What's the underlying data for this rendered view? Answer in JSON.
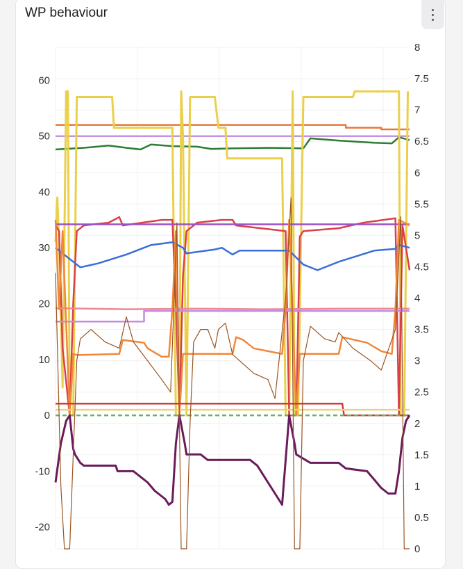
{
  "header": {
    "title": "WP behaviour",
    "menu_icon": "more-vertical-icon"
  },
  "chart_data": {
    "type": "line",
    "title": "WP behaviour",
    "grid": true,
    "y_left": {
      "ticks": [
        -20,
        -10,
        0,
        10,
        20,
        30,
        40,
        50,
        60
      ],
      "range": [
        -23.9,
        65.9
      ]
    },
    "y_right": {
      "ticks": [
        0,
        0.5,
        1,
        1.5,
        2,
        2.5,
        3,
        3.5,
        4,
        4.5,
        5,
        5.5,
        6,
        6.5,
        7,
        7.5,
        8
      ],
      "range": [
        0,
        8
      ]
    },
    "series": [
      {
        "axis": "left",
        "color": "#e8773a",
        "width": 2.5,
        "points": [
          [
            0,
            52
          ],
          [
            82,
            52
          ],
          [
            82,
            51.5
          ],
          [
            92,
            51.5
          ],
          [
            92,
            51.2
          ],
          [
            100,
            51.2
          ]
        ]
      },
      {
        "axis": "left",
        "color": "#c392e0",
        "width": 2.5,
        "points": [
          [
            0,
            50
          ],
          [
            100,
            50
          ]
        ]
      },
      {
        "axis": "left",
        "color": "#2e7d32",
        "width": 2.5,
        "points": [
          [
            0,
            47.6
          ],
          [
            8,
            47.9
          ],
          [
            15,
            48.3
          ],
          [
            20,
            47.9
          ],
          [
            24,
            47.6
          ],
          [
            27,
            48.5
          ],
          [
            33,
            48.2
          ],
          [
            40,
            48.1
          ],
          [
            44,
            47.7
          ],
          [
            50,
            47.8
          ],
          [
            60,
            47.9
          ],
          [
            70,
            47.8
          ],
          [
            72,
            49.6
          ],
          [
            80,
            49.2
          ],
          [
            90,
            48.8
          ],
          [
            95,
            48.7
          ],
          [
            97,
            49.8
          ],
          [
            100,
            49.3
          ]
        ]
      },
      {
        "axis": "left",
        "color": "#ead04a",
        "width": 3,
        "points": [
          [
            0,
            31
          ],
          [
            0.5,
            39
          ],
          [
            1,
            31
          ],
          [
            2,
            5
          ],
          [
            3,
            58
          ],
          [
            3.5,
            58
          ],
          [
            4,
            0
          ],
          [
            5,
            0
          ],
          [
            6,
            57
          ],
          [
            16,
            57
          ],
          [
            16.5,
            51.5
          ],
          [
            33,
            51.5
          ],
          [
            34,
            0
          ],
          [
            35,
            0
          ],
          [
            35.5,
            58
          ],
          [
            36,
            50
          ],
          [
            37,
            0
          ],
          [
            38,
            57
          ],
          [
            45,
            57
          ],
          [
            46,
            51.5
          ],
          [
            48,
            51.5
          ],
          [
            48.5,
            46
          ],
          [
            64,
            46
          ],
          [
            65,
            0
          ],
          [
            66,
            0
          ],
          [
            67,
            58
          ],
          [
            67.5,
            0
          ],
          [
            68.5,
            0
          ],
          [
            70,
            57
          ],
          [
            84,
            57
          ],
          [
            84.5,
            58
          ],
          [
            97,
            58
          ],
          [
            97.5,
            0
          ],
          [
            98.5,
            0
          ],
          [
            99.5,
            58
          ]
        ]
      },
      {
        "axis": "left",
        "color": "#d9404a",
        "width": 2.5,
        "points": [
          [
            0,
            34
          ],
          [
            1,
            33
          ],
          [
            2,
            12
          ],
          [
            4,
            0
          ],
          [
            5,
            20
          ],
          [
            6,
            33
          ],
          [
            8,
            34
          ],
          [
            15,
            34.5
          ],
          [
            18,
            35.5
          ],
          [
            19,
            34
          ],
          [
            30,
            35
          ],
          [
            33,
            35
          ],
          [
            34,
            20
          ],
          [
            35,
            0
          ],
          [
            36,
            25
          ],
          [
            37,
            33
          ],
          [
            40,
            34.5
          ],
          [
            47,
            35
          ],
          [
            50,
            35
          ],
          [
            51,
            34
          ],
          [
            65,
            33
          ],
          [
            66,
            0
          ],
          [
            68,
            0
          ],
          [
            69,
            32
          ],
          [
            70,
            33
          ],
          [
            80,
            33.5
          ],
          [
            87,
            34.5
          ],
          [
            96,
            35.3
          ],
          [
            97,
            0
          ],
          [
            98,
            34
          ],
          [
            100,
            26
          ]
        ]
      },
      {
        "axis": "left",
        "color": "#9b50c8",
        "width": 2.5,
        "points": [
          [
            0,
            34.2
          ],
          [
            100,
            34.2
          ]
        ]
      },
      {
        "axis": "left",
        "color": "#3a6fd8",
        "width": 2.5,
        "points": [
          [
            0,
            30
          ],
          [
            4,
            28
          ],
          [
            7,
            26.5
          ],
          [
            12,
            27.2
          ],
          [
            20,
            28.8
          ],
          [
            27,
            30.5
          ],
          [
            33,
            31
          ],
          [
            36,
            30
          ],
          [
            37,
            29
          ],
          [
            45,
            29.7
          ],
          [
            47,
            30
          ],
          [
            50,
            28.8
          ],
          [
            52,
            29.5
          ],
          [
            66,
            29.5
          ],
          [
            70,
            27
          ],
          [
            74,
            26
          ],
          [
            80,
            27.5
          ],
          [
            90,
            29.5
          ],
          [
            96,
            29.8
          ],
          [
            97,
            30.5
          ],
          [
            100,
            30
          ]
        ]
      },
      {
        "axis": "left",
        "color": "#ea8a96",
        "width": 2.5,
        "points": [
          [
            0,
            19.2
          ],
          [
            20,
            19
          ],
          [
            40,
            19.1
          ],
          [
            60,
            19
          ],
          [
            80,
            19.1
          ],
          [
            100,
            19.1
          ]
        ]
      },
      {
        "axis": "left",
        "color": "#c48be0",
        "width": 2.5,
        "points": [
          [
            0,
            16.8
          ],
          [
            25,
            16.8
          ],
          [
            25,
            18.7
          ],
          [
            100,
            18.7
          ]
        ]
      },
      {
        "axis": "left",
        "color": "#f0883a",
        "width": 2.5,
        "points": [
          [
            0,
            35
          ],
          [
            1,
            19
          ],
          [
            2,
            33
          ],
          [
            4,
            0
          ],
          [
            5,
            11
          ],
          [
            6,
            10.8
          ],
          [
            18,
            11
          ],
          [
            19,
            13.5
          ],
          [
            25,
            13
          ],
          [
            26,
            12
          ],
          [
            30,
            10.5
          ],
          [
            32,
            10.5
          ],
          [
            33,
            19
          ],
          [
            34,
            33
          ],
          [
            35,
            0
          ],
          [
            36,
            11
          ],
          [
            50,
            11
          ],
          [
            51,
            14
          ],
          [
            53,
            13.5
          ],
          [
            56,
            12
          ],
          [
            64,
            11
          ],
          [
            65,
            19
          ],
          [
            66,
            35
          ],
          [
            68,
            0
          ],
          [
            69,
            11
          ],
          [
            80,
            11
          ],
          [
            81,
            14
          ],
          [
            88,
            13
          ],
          [
            92,
            11.5
          ],
          [
            95,
            11
          ],
          [
            96,
            19
          ],
          [
            97,
            35
          ],
          [
            100,
            34
          ]
        ]
      },
      {
        "axis": "left",
        "color": "#d23a3a",
        "width": 2.5,
        "points": [
          [
            0,
            2.1
          ],
          [
            81,
            2.1
          ],
          [
            81.5,
            0
          ],
          [
            100,
            0
          ]
        ]
      },
      {
        "axis": "left",
        "color": "#f0d080",
        "width": 2.5,
        "points": [
          [
            0,
            1
          ],
          [
            100,
            1
          ]
        ]
      },
      {
        "axis": "left",
        "color": "#6ab06a",
        "width": 2.5,
        "dashed": true,
        "points": [
          [
            0,
            0
          ],
          [
            100,
            0
          ]
        ]
      },
      {
        "axis": "left",
        "color": "#6a1b5a",
        "width": 3,
        "points": [
          [
            0,
            -12
          ],
          [
            1.5,
            -5
          ],
          [
            3,
            -1
          ],
          [
            4,
            0
          ],
          [
            5,
            -6
          ],
          [
            5.5,
            -7
          ],
          [
            7,
            -8.5
          ],
          [
            8,
            -9
          ],
          [
            17,
            -9
          ],
          [
            17.5,
            -10
          ],
          [
            22,
            -10
          ],
          [
            24,
            -11
          ],
          [
            26,
            -12
          ],
          [
            28,
            -13.5
          ],
          [
            31,
            -15
          ],
          [
            32,
            -16
          ],
          [
            33,
            -15.5
          ],
          [
            34,
            -5
          ],
          [
            35,
            0
          ],
          [
            36.5,
            -5
          ],
          [
            37,
            -7
          ],
          [
            41,
            -7
          ],
          [
            43,
            -8
          ],
          [
            55,
            -8
          ],
          [
            57,
            -9
          ],
          [
            59,
            -11
          ],
          [
            61,
            -13
          ],
          [
            63,
            -15
          ],
          [
            64,
            -16
          ],
          [
            65,
            -8
          ],
          [
            66,
            0
          ],
          [
            67.5,
            -5
          ],
          [
            68,
            -7
          ],
          [
            72,
            -8.5
          ],
          [
            80,
            -8.5
          ],
          [
            82,
            -9.5
          ],
          [
            88,
            -10
          ],
          [
            90,
            -11.5
          ],
          [
            92,
            -13
          ],
          [
            94,
            -14
          ],
          [
            96,
            -14
          ],
          [
            97,
            -10
          ],
          [
            98,
            -4
          ],
          [
            99,
            -1
          ],
          [
            100,
            0
          ]
        ]
      },
      {
        "axis": "right",
        "color": "#9a5420",
        "width": 1.2,
        "points": [
          [
            0,
            4.4
          ],
          [
            1.5,
            1
          ],
          [
            2.5,
            0
          ],
          [
            4,
            0
          ],
          [
            5,
            1.5
          ],
          [
            6,
            3.0
          ],
          [
            7,
            3.35
          ],
          [
            10,
            3.5
          ],
          [
            14,
            3.3
          ],
          [
            18,
            3.2
          ],
          [
            20,
            3.7
          ],
          [
            22,
            3.3
          ],
          [
            26,
            3.0
          ],
          [
            30,
            2.7
          ],
          [
            32.5,
            2.5
          ],
          [
            33.5,
            4
          ],
          [
            34.3,
            5.2
          ],
          [
            35,
            2
          ],
          [
            35.5,
            0
          ],
          [
            37,
            0
          ],
          [
            38,
            2
          ],
          [
            39,
            3.3
          ],
          [
            41,
            3.5
          ],
          [
            43,
            3.5
          ],
          [
            45,
            3.2
          ],
          [
            46,
            3.5
          ],
          [
            48,
            3.6
          ],
          [
            50,
            3.1
          ],
          [
            56,
            2.8
          ],
          [
            60,
            2.7
          ],
          [
            62,
            2.4
          ],
          [
            65,
            4
          ],
          [
            66.5,
            5.6
          ],
          [
            67.5,
            0
          ],
          [
            69,
            0
          ],
          [
            70,
            3
          ],
          [
            72,
            3.55
          ],
          [
            76,
            3.35
          ],
          [
            79,
            3.3
          ],
          [
            80,
            3.45
          ],
          [
            84,
            3.2
          ],
          [
            89,
            3
          ],
          [
            92,
            2.85
          ],
          [
            96,
            3.5
          ],
          [
            97.5,
            5.3
          ],
          [
            98.5,
            0
          ],
          [
            100,
            0
          ]
        ]
      }
    ]
  }
}
